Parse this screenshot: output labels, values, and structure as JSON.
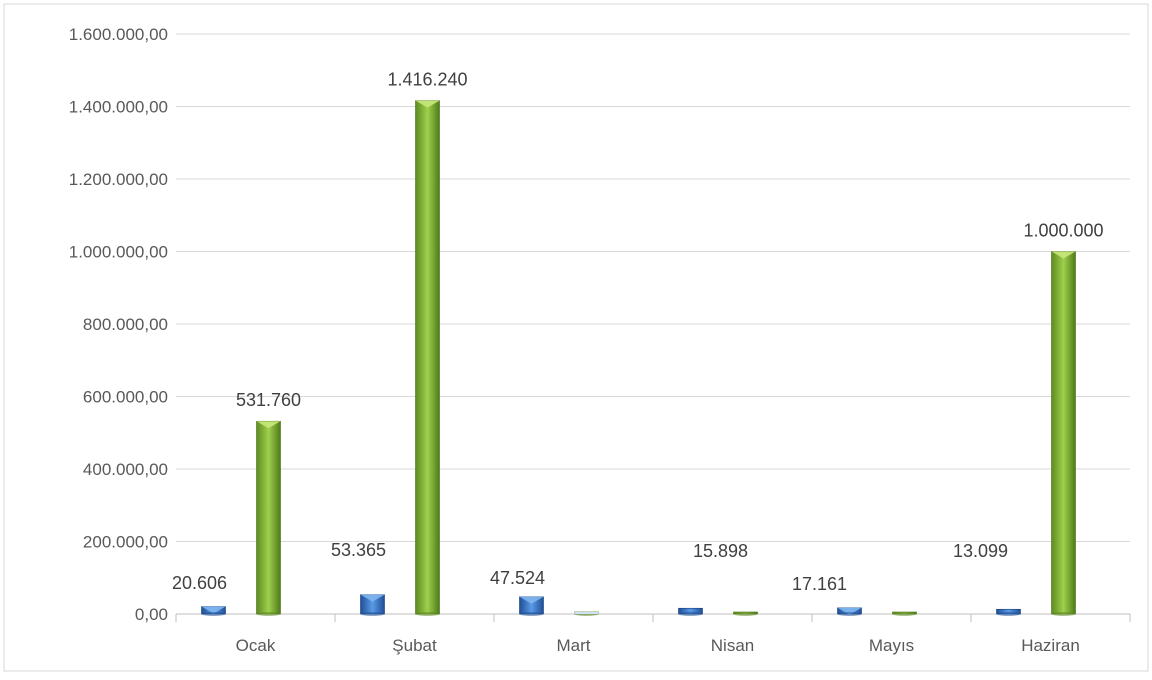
{
  "chart_data": {
    "type": "bar",
    "categories": [
      "Ocak",
      "Şubat",
      "Mart",
      "Nisan",
      "Mayıs",
      "Haziran"
    ],
    "series": [
      {
        "color": "#3d7fd1",
        "values": [
          20606,
          53365,
          47524,
          15898,
          17161,
          13099
        ],
        "labels": [
          "20.606",
          "53.365",
          "47.524",
          "15.898",
          "17.161",
          "13.099"
        ]
      },
      {
        "color": "#8fbf3f",
        "values": [
          531760,
          1416240,
          0,
          0,
          0,
          1000000
        ],
        "labels": [
          "531.760",
          "1.416.240",
          "",
          "",
          "",
          "1.000.000"
        ]
      }
    ],
    "ylim": [
      0,
      1600000
    ],
    "y_ticks": [
      0,
      200000,
      400000,
      600000,
      800000,
      1000000,
      1200000,
      1400000,
      1600000
    ],
    "y_tick_labels": [
      "0,00",
      "200.000,00",
      "400.000,00",
      "600.000,00",
      "800.000,00",
      "1.000.000,00",
      "1.200.000,00",
      "1.400.000,00",
      "1.600.000,00"
    ],
    "grid": true,
    "legend": "none"
  }
}
